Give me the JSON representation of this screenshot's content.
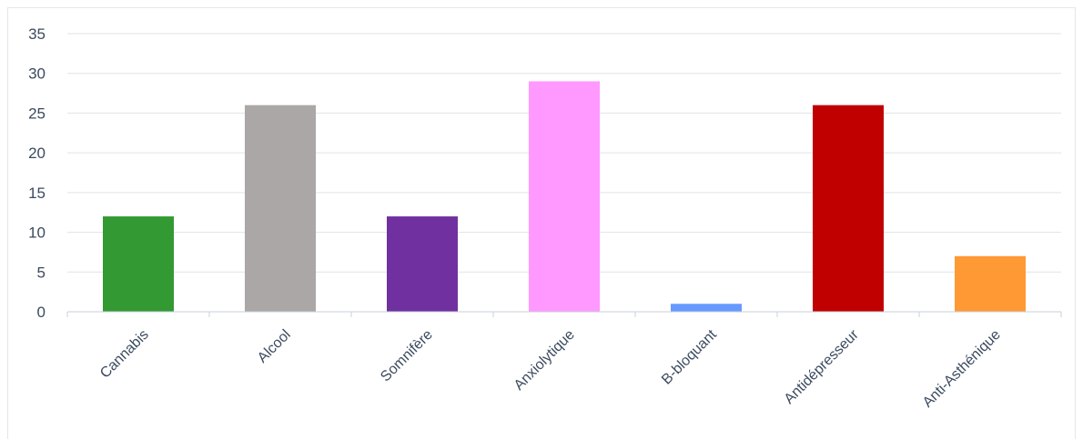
{
  "chart_data": {
    "type": "bar",
    "categories": [
      "Cannabis",
      "Alcool",
      "Somnifère",
      "Anxiolytique",
      "B-bloquant",
      "Antidépresseur",
      "Anti-Asthénique"
    ],
    "values": [
      12,
      26,
      12,
      29,
      1,
      26,
      7
    ],
    "colors": [
      "#339933",
      "#aba7a6",
      "#7030a0",
      "#ff99ff",
      "#6699ff",
      "#c00000",
      "#ff9933"
    ],
    "yticks": [
      "0",
      "5",
      "10",
      "15",
      "20",
      "25",
      "30",
      "35"
    ],
    "ylim": [
      0,
      35
    ],
    "grid": true,
    "legend": "none"
  }
}
